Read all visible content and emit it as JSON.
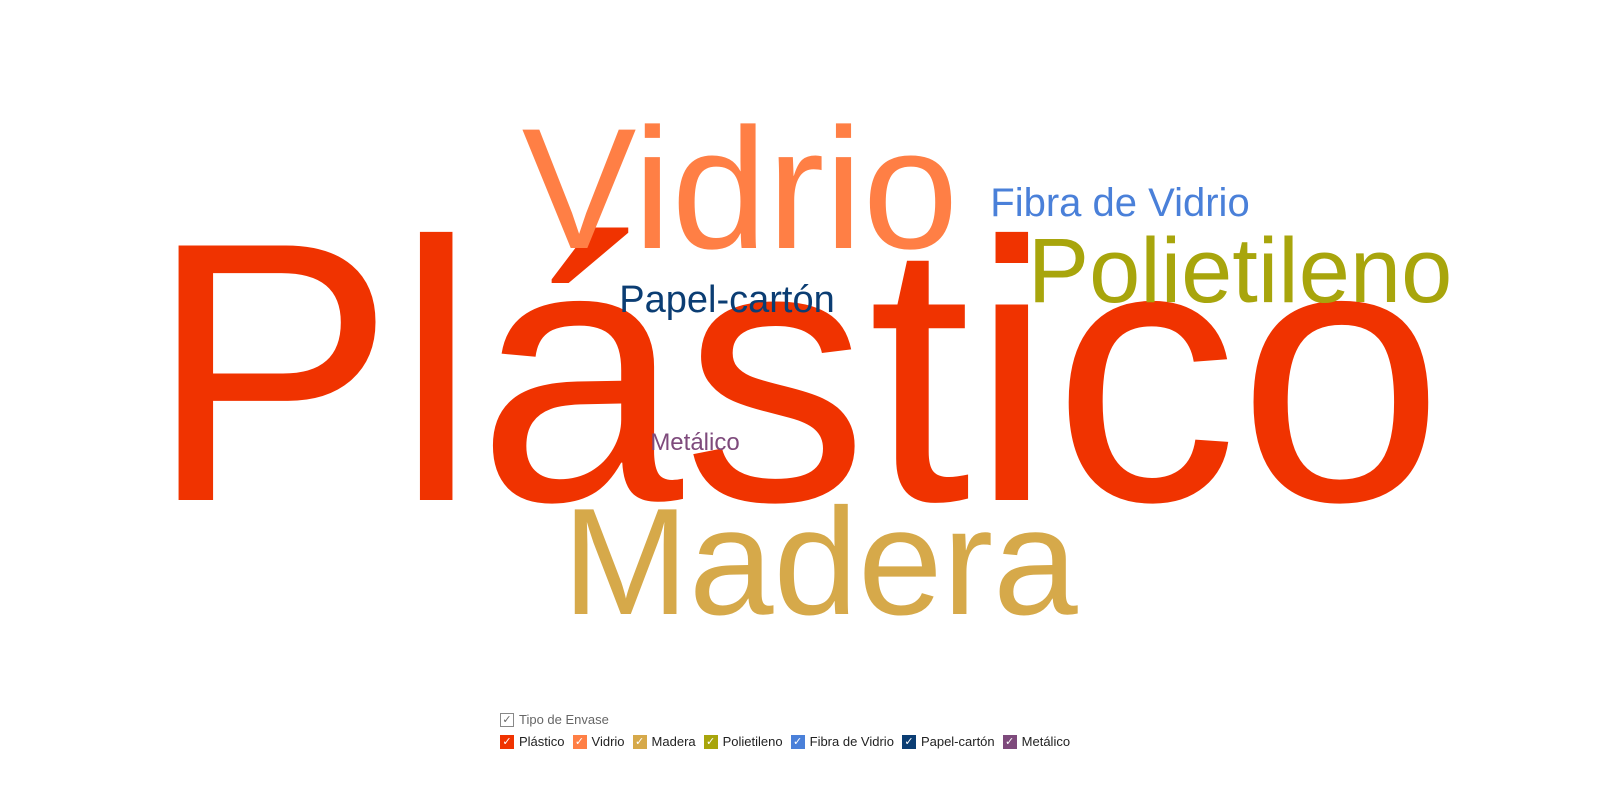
{
  "chart_data": {
    "type": "wordcloud",
    "title": "",
    "words": [
      {
        "text": "Plástico",
        "rank": 1,
        "color": "#f03300"
      },
      {
        "text": "Vidrio",
        "rank": 2,
        "color": "#ff7f45"
      },
      {
        "text": "Madera",
        "rank": 3,
        "color": "#d6a94a"
      },
      {
        "text": "Polietileno",
        "rank": 4,
        "color": "#a8a50c"
      },
      {
        "text": "Fibra de Vidrio",
        "rank": 5,
        "color": "#4a80d9"
      },
      {
        "text": "Papel-cartón",
        "rank": 6,
        "color": "#0b3d73"
      },
      {
        "text": "Metálico",
        "rank": 7,
        "color": "#7e4a7c"
      }
    ]
  },
  "legend": {
    "title": "Tipo de Envase",
    "check_glyph": "✓",
    "items": [
      {
        "label": "Plástico",
        "color": "#f03300"
      },
      {
        "label": "Vidrio",
        "color": "#ff7f45"
      },
      {
        "label": "Madera",
        "color": "#d6a94a"
      },
      {
        "label": "Polietileno",
        "color": "#a8a50c"
      },
      {
        "label": "Fibra de Vidrio",
        "color": "#4a80d9"
      },
      {
        "label": "Papel-cartón",
        "color": "#0b3d73"
      },
      {
        "label": "Metálico",
        "color": "#7e4a7c"
      }
    ]
  }
}
